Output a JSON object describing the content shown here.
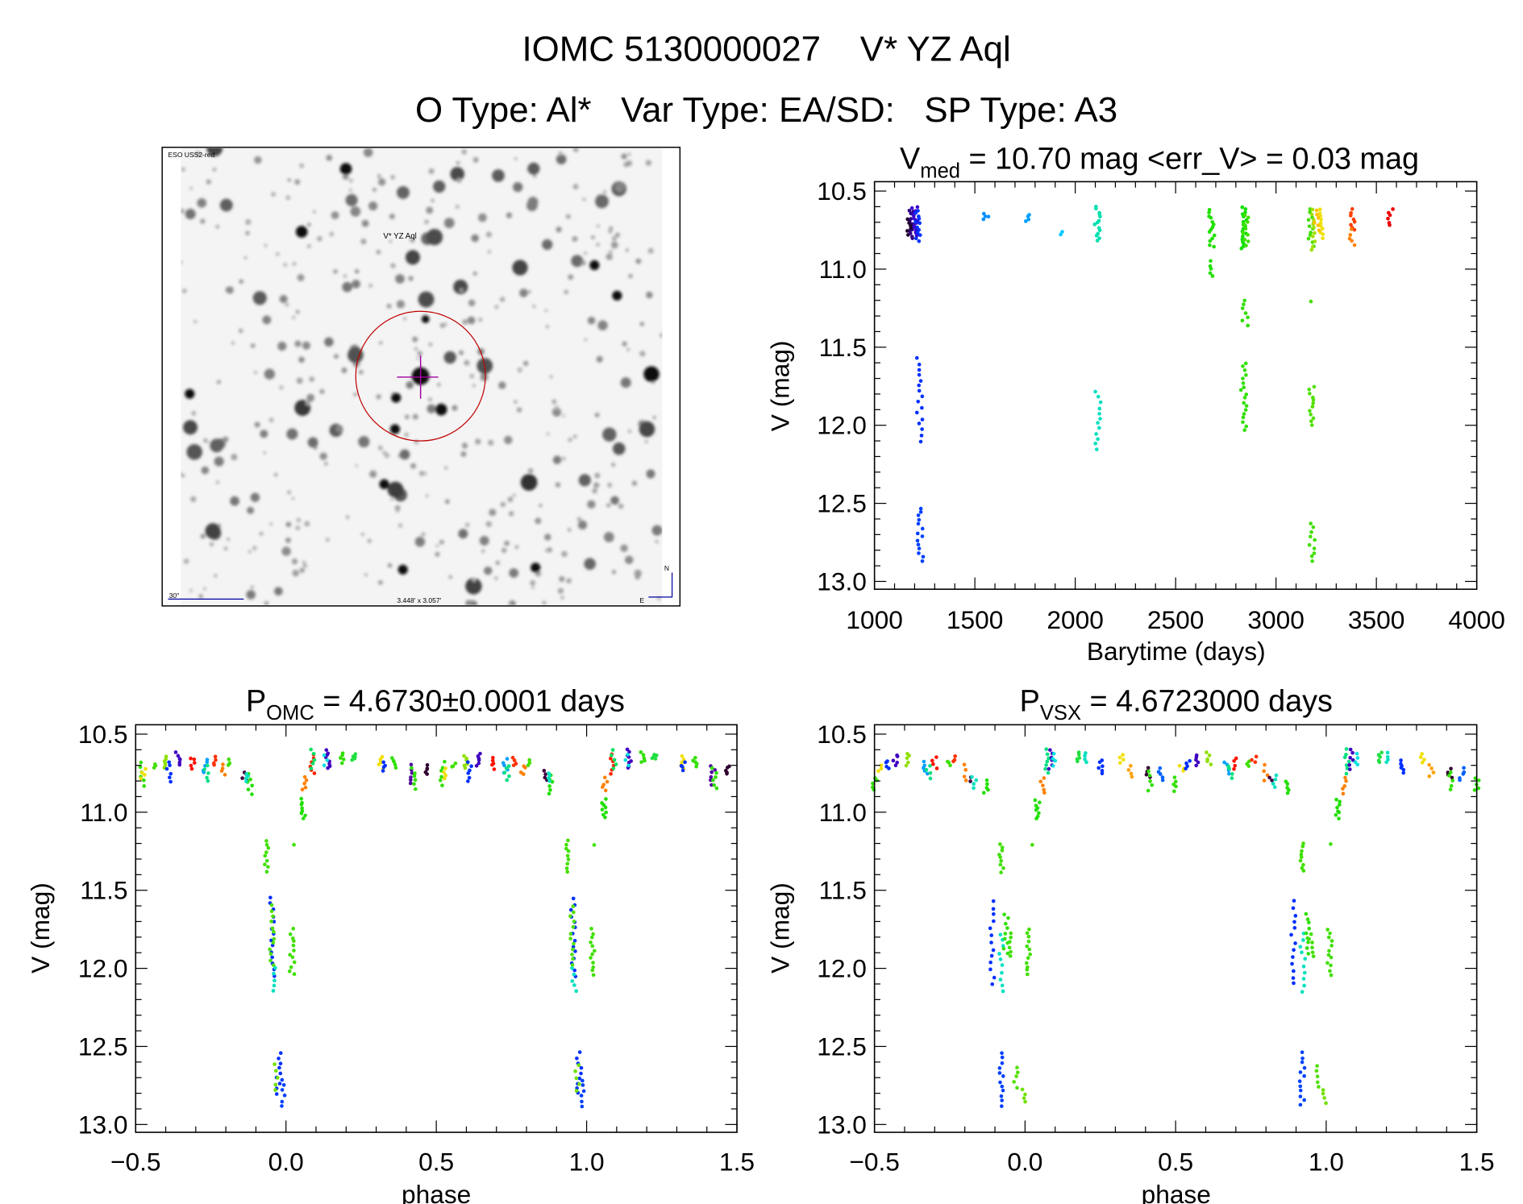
{
  "header": {
    "title_line1": "IOMC 5130000027    V* YZ Aql",
    "title_line2": "O Type: Al*   Var Type: EA/SD:   SP Type: A3"
  },
  "image_panel": {
    "survey_label": "ESO USS2-red",
    "target_label": "V* YZ Aql",
    "scale_label": "30\"",
    "fov_label": "3.448' x 3.057'",
    "north_label": "N",
    "east_label": "E",
    "target_circle_color": "#c00000",
    "crosshair_color": "#a000a0",
    "label_color": "#0000a0"
  },
  "chart_data": [
    {
      "type": "scatter",
      "id": "lightcurve",
      "title_main": "V",
      "title_sub": "med",
      "title_rest": " = 10.70 mag <err_V> = 0.03 mag",
      "xlabel": "Barytime (days)",
      "ylabel": "V (mag)",
      "xlim": [
        1000,
        4000
      ],
      "ylim": [
        10.44,
        13.05
      ],
      "y_inverted": true,
      "xticks": [
        "1000",
        "1500",
        "2000",
        "2500",
        "3000",
        "3500",
        "4000"
      ],
      "xtick_values": [
        1000,
        1500,
        2000,
        2500,
        3000,
        3500,
        4000
      ],
      "yticks": [
        "10.5",
        "11.0",
        "11.5",
        "12.0",
        "12.5",
        "13.0"
      ],
      "ytick_values": [
        10.5,
        11.0,
        11.5,
        12.0,
        12.5,
        13.0
      ],
      "grid": false,
      "clusters": [
        {
          "x": 1185,
          "y": [
            10.62,
            10.8
          ],
          "n": 14,
          "color": "#30008a"
        },
        {
          "x": 1200,
          "y": [
            10.6,
            10.78
          ],
          "n": 14,
          "color": "#3a00d0"
        },
        {
          "x": 1215,
          "y": [
            10.62,
            10.82
          ],
          "n": 12,
          "color": "#0030ff"
        },
        {
          "x": 1170,
          "y": [
            10.68,
            10.78
          ],
          "n": 6,
          "color": "#200030"
        },
        {
          "x": 1225,
          "y": [
            11.57,
            12.1
          ],
          "n": 16,
          "color": "#0030ff"
        },
        {
          "x": 1228,
          "y": [
            12.53,
            12.87
          ],
          "n": 14,
          "color": "#0040ff"
        },
        {
          "x": 1555,
          "y": [
            10.65,
            10.68
          ],
          "n": 4,
          "color": "#0090ff"
        },
        {
          "x": 1760,
          "y": [
            10.65,
            10.69
          ],
          "n": 4,
          "color": "#00a0ff"
        },
        {
          "x": 1940,
          "y": [
            10.76,
            10.78
          ],
          "n": 2,
          "color": "#00c8ff"
        },
        {
          "x": 2110,
          "y": [
            10.6,
            10.82
          ],
          "n": 14,
          "color": "#00e0b0"
        },
        {
          "x": 2112,
          "y": [
            11.79,
            12.15
          ],
          "n": 12,
          "color": "#00e0c0"
        },
        {
          "x": 2680,
          "y": [
            10.62,
            10.86
          ],
          "n": 14,
          "color": "#20e000"
        },
        {
          "x": 2680,
          "y": [
            10.95,
            11.05
          ],
          "n": 5,
          "color": "#20e000"
        },
        {
          "x": 2840,
          "y": [
            10.6,
            10.87
          ],
          "n": 18,
          "color": "#10e000"
        },
        {
          "x": 2850,
          "y": [
            10.65,
            10.85
          ],
          "n": 10,
          "color": "#40e000"
        },
        {
          "x": 2845,
          "y": [
            11.2,
            11.36
          ],
          "n": 7,
          "color": "#30e000"
        },
        {
          "x": 2840,
          "y": [
            11.6,
            12.03
          ],
          "n": 18,
          "color": "#30e000"
        },
        {
          "x": 3175,
          "y": [
            10.62,
            10.85
          ],
          "n": 12,
          "color": "#40e000"
        },
        {
          "x": 3190,
          "y": [
            10.62,
            10.88
          ],
          "n": 10,
          "color": "#a0e000"
        },
        {
          "x": 3178,
          "y": [
            11.2,
            11.21
          ],
          "n": 1,
          "color": "#40e000"
        },
        {
          "x": 3178,
          "y": [
            11.75,
            12.0
          ],
          "n": 12,
          "color": "#50e000"
        },
        {
          "x": 3180,
          "y": [
            12.63,
            12.87
          ],
          "n": 10,
          "color": "#40e000"
        },
        {
          "x": 3220,
          "y": [
            10.62,
            10.8
          ],
          "n": 10,
          "color": "#f0e000"
        },
        {
          "x": 3200,
          "y": [
            10.62,
            10.75
          ],
          "n": 6,
          "color": "#ffc000"
        },
        {
          "x": 3385,
          "y": [
            10.62,
            10.75
          ],
          "n": 8,
          "color": "#ff4000"
        },
        {
          "x": 3380,
          "y": [
            10.75,
            10.85
          ],
          "n": 5,
          "color": "#ff8000"
        },
        {
          "x": 3570,
          "y": [
            10.62,
            10.72
          ],
          "n": 6,
          "color": "#f00000"
        }
      ]
    },
    {
      "type": "scatter",
      "id": "phase_omc",
      "title_main": "P",
      "title_sub": "OMC",
      "title_rest": " = 4.6730±0.0001 days",
      "xlabel": "phase",
      "ylabel": "V (mag)",
      "xlim": [
        -0.5,
        1.5
      ],
      "ylim": [
        10.44,
        13.05
      ],
      "y_inverted": true,
      "xticks": [
        "−0.5",
        "0.0",
        "0.5",
        "1.0",
        "1.5"
      ],
      "xtick_values": [
        -0.5,
        0.0,
        0.5,
        1.0,
        1.5
      ],
      "yticks": [
        "10.5",
        "11.0",
        "11.5",
        "12.0",
        "12.5",
        "13.0"
      ],
      "ytick_values": [
        10.5,
        11.0,
        11.5,
        12.0,
        12.5,
        13.0
      ],
      "grid": false,
      "phase_folded": true,
      "clusters": [
        {
          "x": 0.936,
          "y": [
            11.18,
            11.38
          ],
          "n": 9,
          "color": "#40e000"
        },
        {
          "x": 0.955,
          "y": [
            11.55,
            12.05
          ],
          "n": 14,
          "color": "#0030ff"
        },
        {
          "x": 0.952,
          "y": [
            11.6,
            11.98
          ],
          "n": 12,
          "color": "#50e000"
        },
        {
          "x": 0.958,
          "y": [
            12.0,
            12.15
          ],
          "n": 5,
          "color": "#00e0c0"
        },
        {
          "x": 0.02,
          "y": [
            11.75,
            12.04
          ],
          "n": 12,
          "color": "#40e000"
        },
        {
          "x": 0.023,
          "y": [
            11.2,
            11.21
          ],
          "n": 1,
          "color": "#40e000"
        },
        {
          "x": 0.975,
          "y": [
            12.54,
            12.8
          ],
          "n": 9,
          "color": "#0030ff"
        },
        {
          "x": 0.97,
          "y": [
            12.62,
            12.78
          ],
          "n": 5,
          "color": "#70e000"
        },
        {
          "x": 0.99,
          "y": [
            12.72,
            12.88
          ],
          "n": 6,
          "color": "#0040ff"
        },
        {
          "x": 0.057,
          "y": [
            10.92,
            11.04
          ],
          "n": 8,
          "color": "#20e000"
        },
        {
          "x": 0.06,
          "y": [
            10.78,
            10.86
          ],
          "n": 5,
          "color": "#ff8000"
        },
        {
          "x": 0.087,
          "y": [
            10.63,
            10.75
          ],
          "n": 6,
          "color": "#ff2000"
        },
        {
          "x": 0.09,
          "y": [
            10.6,
            10.72
          ],
          "n": 5,
          "color": "#00e060"
        },
        {
          "x": 0.14,
          "y": [
            10.6,
            10.72
          ],
          "n": 8,
          "color": "#4000c0"
        },
        {
          "x": 0.135,
          "y": [
            10.63,
            10.7
          ],
          "n": 3,
          "color": "#00e0e0"
        },
        {
          "x": 0.185,
          "y": [
            10.62,
            10.68
          ],
          "n": 5,
          "color": "#30e000"
        },
        {
          "x": 0.225,
          "y": [
            10.63,
            10.66
          ],
          "n": 5,
          "color": "#20e040"
        },
        {
          "x": 0.317,
          "y": [
            10.64,
            10.72
          ],
          "n": 5,
          "color": "#f0e000"
        },
        {
          "x": 0.322,
          "y": [
            10.68,
            10.73
          ],
          "n": 4,
          "color": "#0030ff"
        },
        {
          "x": 0.36,
          "y": [
            10.65,
            10.71
          ],
          "n": 5,
          "color": "#30e000"
        },
        {
          "x": 0.42,
          "y": [
            10.7,
            10.82
          ],
          "n": 6,
          "color": "#5000a0"
        },
        {
          "x": 0.425,
          "y": [
            10.72,
            10.85
          ],
          "n": 6,
          "color": "#30e000"
        },
        {
          "x": 0.47,
          "y": [
            10.7,
            10.76
          ],
          "n": 5,
          "color": "#300030"
        },
        {
          "x": 0.52,
          "y": [
            10.68,
            10.83
          ],
          "n": 6,
          "color": "#30e000"
        },
        {
          "x": 0.525,
          "y": [
            10.72,
            10.78
          ],
          "n": 4,
          "color": "#f0e000"
        },
        {
          "x": 0.56,
          "y": [
            10.69,
            10.71
          ],
          "n": 3,
          "color": "#40e000"
        },
        {
          "x": 0.6,
          "y": [
            10.64,
            10.72
          ],
          "n": 6,
          "color": "#90e000"
        },
        {
          "x": 0.61,
          "y": [
            10.68,
            10.8
          ],
          "n": 6,
          "color": "#0030ff"
        },
        {
          "x": 0.64,
          "y": [
            10.62,
            10.7
          ],
          "n": 6,
          "color": "#4000c0"
        },
        {
          "x": 0.69,
          "y": [
            10.65,
            10.72
          ],
          "n": 5,
          "color": "#ff1000"
        },
        {
          "x": 0.73,
          "y": [
            10.66,
            10.75
          ],
          "n": 5,
          "color": "#00a0ff"
        },
        {
          "x": 0.735,
          "y": [
            10.7,
            10.8
          ],
          "n": 5,
          "color": "#00e080"
        },
        {
          "x": 0.76,
          "y": [
            10.65,
            10.7
          ],
          "n": 4,
          "color": "#ff3000"
        },
        {
          "x": 0.79,
          "y": [
            10.7,
            10.76
          ],
          "n": 4,
          "color": "#ff8000"
        },
        {
          "x": 0.81,
          "y": [
            10.66,
            10.7
          ],
          "n": 3,
          "color": "#40e000"
        },
        {
          "x": 0.862,
          "y": [
            10.74,
            10.8
          ],
          "n": 4,
          "color": "#400040"
        },
        {
          "x": 0.88,
          "y": [
            10.76,
            10.88
          ],
          "n": 6,
          "color": "#20e000"
        },
        {
          "x": 0.872,
          "y": [
            10.75,
            10.8
          ],
          "n": 4,
          "color": "#00e0c0"
        }
      ]
    },
    {
      "type": "scatter",
      "id": "phase_vsx",
      "title_main": "P",
      "title_sub": "VSX",
      "title_rest": " = 4.6723000 days",
      "xlabel": "phase",
      "ylabel": "V (mag)",
      "xlim": [
        -0.5,
        1.5
      ],
      "ylim": [
        10.44,
        13.05
      ],
      "y_inverted": true,
      "xticks": [
        "−0.5",
        "0.0",
        "0.5",
        "1.0",
        "1.5"
      ],
      "xtick_values": [
        -0.5,
        0.0,
        0.5,
        1.0,
        1.5
      ],
      "yticks": [
        "10.5",
        "11.0",
        "11.5",
        "12.0",
        "12.5",
        "13.0"
      ],
      "ytick_values": [
        10.5,
        11.0,
        11.5,
        12.0,
        12.5,
        13.0
      ],
      "grid": false,
      "phase_folded": true,
      "clusters": [
        {
          "x": 0.89,
          "y": [
            11.57,
            12.1
          ],
          "n": 13,
          "color": "#0030ff"
        },
        {
          "x": 0.922,
          "y": [
            11.78,
            12.15
          ],
          "n": 10,
          "color": "#00e0c0"
        },
        {
          "x": 0.92,
          "y": [
            11.2,
            11.38
          ],
          "n": 9,
          "color": "#40e000"
        },
        {
          "x": 0.936,
          "y": [
            11.65,
            11.9
          ],
          "n": 9,
          "color": "#30e000"
        },
        {
          "x": 0.95,
          "y": [
            11.78,
            11.92
          ],
          "n": 6,
          "color": "#40e000"
        },
        {
          "x": 0.012,
          "y": [
            11.75,
            12.04
          ],
          "n": 12,
          "color": "#40e000"
        },
        {
          "x": 0.021,
          "y": [
            11.2,
            11.21
          ],
          "n": 1,
          "color": "#40e000"
        },
        {
          "x": 0.92,
          "y": [
            12.54,
            12.88
          ],
          "n": 12,
          "color": "#0040ff"
        },
        {
          "x": 0.97,
          "y": [
            12.63,
            12.76
          ],
          "n": 5,
          "color": "#50e000"
        },
        {
          "x": 0.998,
          "y": [
            12.78,
            12.86
          ],
          "n": 4,
          "color": "#70e000"
        },
        {
          "x": 0.04,
          "y": [
            10.92,
            11.04
          ],
          "n": 8,
          "color": "#20e000"
        },
        {
          "x": 0.06,
          "y": [
            10.78,
            10.88
          ],
          "n": 5,
          "color": "#ff8000"
        },
        {
          "x": 0.07,
          "y": [
            10.6,
            10.75
          ],
          "n": 7,
          "color": "#00e080"
        },
        {
          "x": 0.085,
          "y": [
            10.6,
            10.72
          ],
          "n": 6,
          "color": "#4000c0"
        },
        {
          "x": 0.1,
          "y": [
            10.63,
            10.7
          ],
          "n": 4,
          "color": "#00e0e0"
        },
        {
          "x": 0.18,
          "y": [
            10.62,
            10.68
          ],
          "n": 5,
          "color": "#20e040"
        },
        {
          "x": 0.2,
          "y": [
            10.62,
            10.68
          ],
          "n": 4,
          "color": "#00e0c0"
        },
        {
          "x": 0.25,
          "y": [
            10.67,
            10.75
          ],
          "n": 6,
          "color": "#0030ff"
        },
        {
          "x": 0.32,
          "y": [
            10.63,
            10.68
          ],
          "n": 4,
          "color": "#f0e000"
        },
        {
          "x": 0.35,
          "y": [
            10.7,
            10.77
          ],
          "n": 4,
          "color": "#ffa000"
        },
        {
          "x": 0.41,
          "y": [
            10.72,
            10.78
          ],
          "n": 4,
          "color": "#300030"
        },
        {
          "x": 0.415,
          "y": [
            10.74,
            10.86
          ],
          "n": 5,
          "color": "#30e000"
        },
        {
          "x": 0.45,
          "y": [
            10.72,
            10.8
          ],
          "n": 5,
          "color": "#0060ff"
        },
        {
          "x": 0.5,
          "y": [
            10.78,
            10.86
          ],
          "n": 5,
          "color": "#30e000"
        },
        {
          "x": 0.52,
          "y": [
            10.7,
            10.74
          ],
          "n": 3,
          "color": "#f0e000"
        },
        {
          "x": 0.54,
          "y": [
            10.67,
            10.72
          ],
          "n": 4,
          "color": "#0030ff"
        },
        {
          "x": 0.57,
          "y": [
            10.63,
            10.7
          ],
          "n": 5,
          "color": "#4000c0"
        },
        {
          "x": 0.61,
          "y": [
            10.62,
            10.7
          ],
          "n": 5,
          "color": "#90e000"
        },
        {
          "x": 0.67,
          "y": [
            10.68,
            10.75
          ],
          "n": 5,
          "color": "#00a0ff"
        },
        {
          "x": 0.68,
          "y": [
            10.7,
            10.78
          ],
          "n": 4,
          "color": "#00e080"
        },
        {
          "x": 0.7,
          "y": [
            10.65,
            10.72
          ],
          "n": 4,
          "color": "#ff1000"
        },
        {
          "x": 0.745,
          "y": [
            10.67,
            10.7
          ],
          "n": 3,
          "color": "#40e000"
        },
        {
          "x": 0.76,
          "y": [
            10.64,
            10.68
          ],
          "n": 3,
          "color": "#ff3000"
        },
        {
          "x": 0.8,
          "y": [
            10.7,
            10.8
          ],
          "n": 4,
          "color": "#ff8000"
        },
        {
          "x": 0.82,
          "y": [
            10.78,
            10.8
          ],
          "n": 2,
          "color": "#400040"
        },
        {
          "x": 0.83,
          "y": [
            10.77,
            10.84
          ],
          "n": 4,
          "color": "#00e0c0"
        },
        {
          "x": 0.87,
          "y": [
            10.8,
            10.88
          ],
          "n": 5,
          "color": "#20e000"
        }
      ]
    }
  ]
}
